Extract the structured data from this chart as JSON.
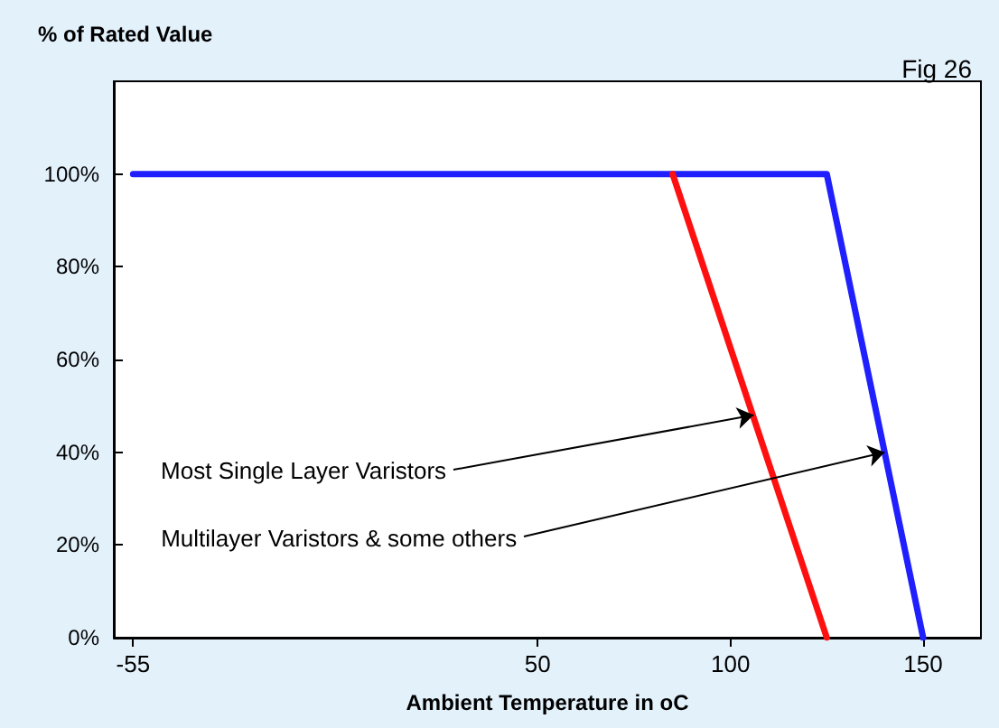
{
  "chart_data": {
    "type": "line",
    "title": "% of Rated Value",
    "subtitle": "Fig 26",
    "xlabel": "Ambient Temperature in oC",
    "series": [
      {
        "color": "#2020ff",
        "x": [
          -55,
          125,
          150
        ],
        "values": [
          100,
          100,
          0
        ]
      },
      {
        "color": "#ff1010",
        "x": [
          85,
          125
        ],
        "values": [
          100,
          0
        ]
      }
    ],
    "xlim": [
      -60,
      165
    ],
    "xticks": [
      -55,
      50,
      100,
      150
    ],
    "ylim": [
      0,
      120
    ],
    "yticks": [
      {
        "value": 0,
        "label": "0%"
      },
      {
        "value": 20,
        "label": "20%"
      },
      {
        "value": 40,
        "label": "40%"
      },
      {
        "value": 60,
        "label": "60%"
      },
      {
        "value": 80,
        "label": "80%"
      },
      {
        "value": 100,
        "label": "100%"
      }
    ],
    "annotations": [
      {
        "text": "Most Single Layer Varistors",
        "x": 106,
        "y": 48
      },
      {
        "text": "Multilayer Varistors & some others",
        "x": 140,
        "y": 40
      }
    ],
    "grid": false,
    "marker": "none",
    "line_style": "solid"
  }
}
